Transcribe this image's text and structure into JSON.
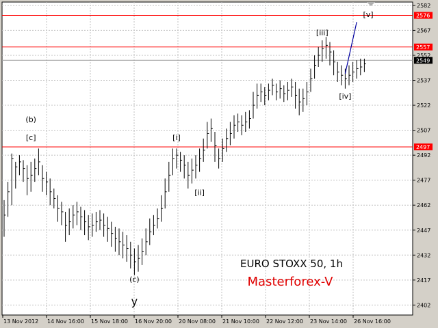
{
  "chart_data": {
    "type": "bar",
    "title": "EURO STOXX 50, 1h",
    "watermark": "Masterforex-V",
    "watermark_color": "#e00000",
    "ylim": [
      2396,
      2584
    ],
    "y_ticks": [
      2582,
      2567,
      2552,
      2537,
      2522,
      2507,
      2492,
      2477,
      2462,
      2447,
      2432,
      2417,
      2402
    ],
    "x_labels": [
      "13 Nov 2012",
      "14 Nov 16:00",
      "15 Nov 18:00",
      "16 Nov 20:00",
      "20 Nov 08:00",
      "21 Nov 10:00",
      "22 Nov 12:00",
      "23 Nov 14:00",
      "26 Nov 16:00"
    ],
    "current_price": 2549,
    "levels": [
      {
        "value": 2576,
        "label": "2576",
        "color": "#ff0000"
      },
      {
        "value": 2557,
        "label": "2557",
        "color": "#ff0000"
      },
      {
        "value": 2497,
        "label": "2497",
        "color": "#ff0000"
      }
    ],
    "bars": [
      [
        2456,
        2443,
        2465
      ],
      [
        2470,
        2455,
        2476
      ],
      [
        2490,
        2462,
        2493
      ],
      [
        2485,
        2472,
        2488
      ],
      [
        2488,
        2480,
        2492
      ],
      [
        2484,
        2476,
        2489
      ],
      [
        2478,
        2468,
        2486
      ],
      [
        2480,
        2470,
        2488
      ],
      [
        2484,
        2476,
        2490
      ],
      [
        2488,
        2480,
        2496
      ],
      [
        2478,
        2470,
        2486
      ],
      [
        2476,
        2468,
        2482
      ],
      [
        2470,
        2462,
        2478
      ],
      [
        2466,
        2460,
        2472
      ],
      [
        2460,
        2452,
        2468
      ],
      [
        2458,
        2450,
        2464
      ],
      [
        2450,
        2440,
        2458
      ],
      [
        2452,
        2444,
        2460
      ],
      [
        2456,
        2448,
        2462
      ],
      [
        2458,
        2450,
        2464
      ],
      [
        2455,
        2447,
        2461
      ],
      [
        2452,
        2444,
        2459
      ],
      [
        2449,
        2441,
        2456
      ],
      [
        2450,
        2443,
        2457
      ],
      [
        2452,
        2446,
        2458
      ],
      [
        2453,
        2447,
        2459
      ],
      [
        2450,
        2443,
        2457
      ],
      [
        2448,
        2440,
        2455
      ],
      [
        2445,
        2437,
        2452
      ],
      [
        2442,
        2434,
        2449
      ],
      [
        2440,
        2432,
        2448
      ],
      [
        2438,
        2430,
        2446
      ],
      [
        2436,
        2428,
        2444
      ],
      [
        2432,
        2424,
        2440
      ],
      [
        2428,
        2420,
        2436
      ],
      [
        2430,
        2422,
        2438
      ],
      [
        2434,
        2426,
        2442
      ],
      [
        2440,
        2432,
        2448
      ],
      [
        2446,
        2438,
        2454
      ],
      [
        2450,
        2444,
        2456
      ],
      [
        2454,
        2448,
        2460
      ],
      [
        2460,
        2452,
        2468
      ],
      [
        2470,
        2460,
        2478
      ],
      [
        2480,
        2470,
        2488
      ],
      [
        2490,
        2480,
        2496
      ],
      [
        2492,
        2484,
        2496
      ],
      [
        2489,
        2482,
        2494
      ],
      [
        2486,
        2478,
        2492
      ],
      [
        2480,
        2472,
        2488
      ],
      [
        2483,
        2475,
        2490
      ],
      [
        2486,
        2478,
        2492
      ],
      [
        2490,
        2482,
        2496
      ],
      [
        2495,
        2488,
        2502
      ],
      [
        2505,
        2496,
        2512
      ],
      [
        2508,
        2500,
        2514
      ],
      [
        2498,
        2488,
        2506
      ],
      [
        2490,
        2484,
        2496
      ],
      [
        2496,
        2488,
        2502
      ],
      [
        2502,
        2494,
        2508
      ],
      [
        2505,
        2498,
        2512
      ],
      [
        2510,
        2502,
        2516
      ],
      [
        2512,
        2506,
        2517
      ],
      [
        2510,
        2504,
        2516
      ],
      [
        2512,
        2506,
        2518
      ],
      [
        2514,
        2508,
        2519
      ],
      [
        2522,
        2514,
        2530
      ],
      [
        2528,
        2520,
        2535
      ],
      [
        2530,
        2524,
        2535
      ],
      [
        2528,
        2522,
        2533
      ],
      [
        2531,
        2525,
        2535
      ],
      [
        2534,
        2528,
        2538
      ],
      [
        2530,
        2525,
        2535
      ],
      [
        2532,
        2526,
        2537
      ],
      [
        2529,
        2524,
        2534
      ],
      [
        2531,
        2525,
        2536
      ],
      [
        2533,
        2527,
        2538
      ],
      [
        2528,
        2520,
        2536
      ],
      [
        2524,
        2516,
        2532
      ],
      [
        2526,
        2518,
        2532
      ],
      [
        2530,
        2522,
        2536
      ],
      [
        2538,
        2530,
        2544
      ],
      [
        2546,
        2538,
        2552
      ],
      [
        2552,
        2545,
        2557
      ],
      [
        2556,
        2548,
        2561
      ],
      [
        2558,
        2550,
        2563
      ],
      [
        2554,
        2546,
        2560
      ],
      [
        2548,
        2540,
        2555
      ],
      [
        2542,
        2536,
        2548
      ],
      [
        2540,
        2534,
        2546
      ],
      [
        2538,
        2532,
        2544
      ],
      [
        2540,
        2534,
        2546
      ],
      [
        2542,
        2536,
        2548
      ],
      [
        2544,
        2538,
        2549
      ],
      [
        2545,
        2540,
        2550
      ],
      [
        2547,
        2542,
        2550
      ]
    ],
    "projection": [
      [
        2541,
        89
      ],
      [
        2572,
        92
      ]
    ],
    "wave_labels": [
      {
        "text": "(b)",
        "value": 2512,
        "bar": 7
      },
      {
        "text": "[c]",
        "value": 2501,
        "bar": 7
      },
      {
        "text": "[i]",
        "value": 2501,
        "bar": 45
      },
      {
        "text": "[ii]",
        "value": 2468,
        "bar": 51
      },
      {
        "text": "[iii]",
        "value": 2564,
        "bar": 83
      },
      {
        "text": "[iv]",
        "value": 2526,
        "bar": 89
      },
      {
        "text": "[v]",
        "value": 2575,
        "bar": 95
      },
      {
        "text": "(c)",
        "value": 2416,
        "bar": 34
      },
      {
        "text": "y",
        "value": 2402,
        "bar": 34
      }
    ]
  }
}
